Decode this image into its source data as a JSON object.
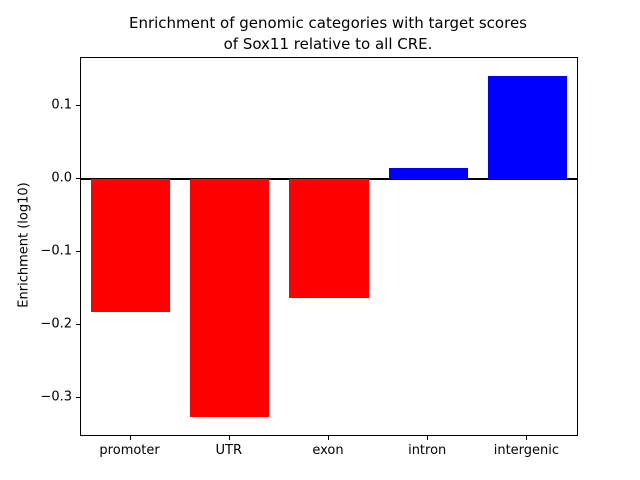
{
  "chart_data": {
    "type": "bar",
    "title": "Enrichment of genomic categories with target scores\nof Sox11 relative to all CRE.",
    "ylabel": "Enrichment (log10)",
    "xlabel": "",
    "categories": [
      "promoter",
      "UTR",
      "exon",
      "intron",
      "intergenic"
    ],
    "values": [
      -0.182,
      -0.325,
      -0.163,
      0.015,
      0.14
    ],
    "bar_colors": [
      "#ff0000",
      "#ff0000",
      "#ff0000",
      "#0000ff",
      "#0000ff"
    ],
    "negative_color": "#ff0000",
    "positive_color": "#0000ff",
    "ylim": [
      -0.35,
      0.165
    ],
    "yticks": [
      {
        "v": 0.1,
        "label": "0.1"
      },
      {
        "v": 0.0,
        "label": "0.0"
      },
      {
        "v": -0.1,
        "label": "−0.1"
      },
      {
        "v": -0.2,
        "label": "−0.2"
      },
      {
        "v": -0.3,
        "label": "−0.3"
      }
    ],
    "grid": false,
    "zero_line": true,
    "legend": "none",
    "bar_width_fraction": 0.8
  }
}
